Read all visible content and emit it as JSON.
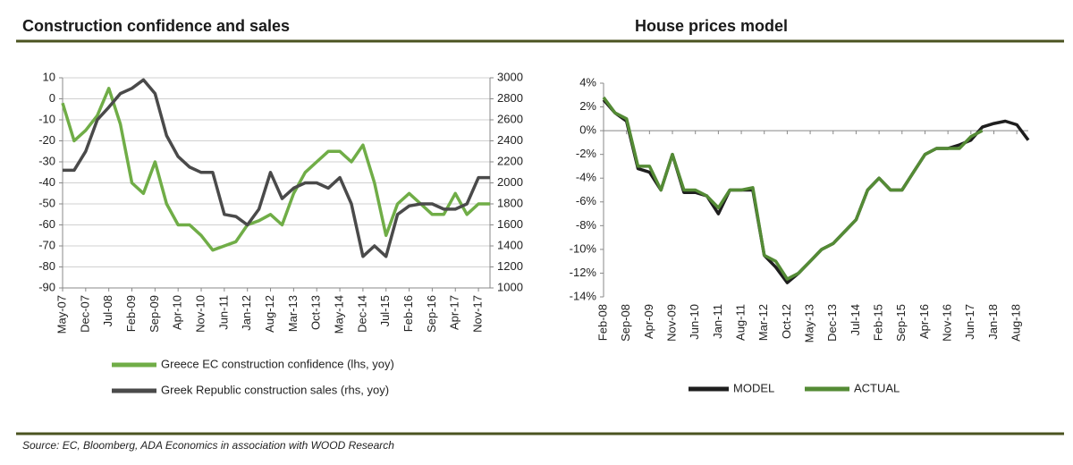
{
  "chart_data": [
    {
      "type": "line",
      "title": "Construction confidence and sales",
      "categories": [
        "May-07",
        null,
        "Dec-07",
        null,
        "Jul-08",
        null,
        "Feb-09",
        null,
        "Sep-09",
        null,
        "Apr-10",
        null,
        "Nov-10",
        null,
        "Jun-11",
        null,
        "Jan-12",
        null,
        "Aug-12",
        null,
        "Mar-13",
        null,
        "Oct-13",
        null,
        "May-14",
        null,
        "Dec-14",
        null,
        "Jul-15",
        null,
        "Feb-16",
        null,
        "Sep-16",
        null,
        "Apr-17",
        null,
        "Nov-17",
        null
      ],
      "series": [
        {
          "name": "Greece EC construction confidence (lhs, yoy)",
          "color": "#70ad47",
          "axis": "y",
          "values": [
            -2,
            -20,
            -15,
            -8,
            5,
            -12,
            -40,
            -45,
            -30,
            -50,
            -60,
            -60,
            -65,
            -72,
            -70,
            -68,
            -60,
            -58,
            -55,
            -60,
            -45,
            -35,
            -30,
            -25,
            -25,
            -30,
            -22,
            -40,
            -65,
            -50,
            -45,
            -50,
            -55,
            -55,
            -45,
            -55,
            -50,
            -50
          ]
        },
        {
          "name": "Greek Republic construction sales (rhs, yoy)",
          "color": "#4a4a4a",
          "axis": "y2",
          "values": [
            2120,
            2120,
            2300,
            2600,
            2720,
            2850,
            2900,
            2980,
            2850,
            2450,
            2250,
            2150,
            2100,
            2100,
            1700,
            1680,
            1600,
            1750,
            2100,
            1850,
            1950,
            2000,
            2000,
            1950,
            2050,
            1800,
            1300,
            1400,
            1300,
            1700,
            1780,
            1800,
            1800,
            1750,
            1750,
            1800,
            2050,
            2050
          ]
        }
      ],
      "ylim": [
        -90,
        10
      ],
      "yticks": [
        -90,
        -80,
        -70,
        -60,
        -50,
        -40,
        -30,
        -20,
        -10,
        0,
        10
      ],
      "y2lim": [
        1000,
        3000
      ],
      "y2ticks": [
        1000,
        1200,
        1400,
        1600,
        1800,
        2000,
        2200,
        2400,
        2600,
        2800,
        3000
      ],
      "grid": true,
      "legend": "bottom"
    },
    {
      "type": "line",
      "title": "House prices model",
      "categories": [
        "Feb-08",
        null,
        "Sep-08",
        null,
        "Apr-09",
        null,
        "Nov-09",
        null,
        "Jun-10",
        null,
        "Jan-11",
        null,
        "Aug-11",
        null,
        "Mar-12",
        null,
        "Oct-12",
        null,
        "May-13",
        null,
        "Dec-13",
        null,
        "Jul-14",
        null,
        "Feb-15",
        null,
        "Sep-15",
        null,
        "Apr-16",
        null,
        "Nov-16",
        null,
        "Jun-17",
        null,
        "Jan-18",
        null,
        "Aug-18",
        null
      ],
      "series": [
        {
          "name": "MODEL",
          "color": "#1e1e1e",
          "axis": "y",
          "values": [
            2.6,
            1.5,
            0.8,
            -3.2,
            -3.5,
            -5,
            -2,
            -5.2,
            -5.2,
            -5.5,
            -7,
            -5,
            -5,
            -5,
            -10.5,
            -11.5,
            -12.8,
            -12,
            -11,
            -10,
            -9.5,
            -8.5,
            -7.5,
            -5,
            -4,
            -5,
            -5,
            -3.5,
            -2,
            -1.5,
            -1.5,
            -1.2,
            -0.8,
            0.3,
            0.6,
            0.8,
            0.5,
            -0.8
          ]
        },
        {
          "name": "ACTUAL",
          "color": "#548b35",
          "axis": "y",
          "values": [
            2.8,
            1.5,
            1.0,
            -3,
            -3,
            -5,
            -2,
            -5,
            -5,
            -5.5,
            -6.5,
            -5,
            -5,
            -4.8,
            -10.5,
            -11,
            -12.5,
            -12,
            -11,
            -10,
            -9.5,
            -8.5,
            -7.5,
            -5,
            -4,
            -5,
            -5,
            -3.5,
            -2,
            -1.5,
            -1.5,
            -1.5,
            -0.5,
            0,
            null,
            null,
            null,
            null
          ]
        }
      ],
      "ylim": [
        -14,
        4
      ],
      "yticks": [
        {
          "value": -14,
          "label": "-14%"
        },
        {
          "value": -12,
          "label": "-12%"
        },
        {
          "value": -10,
          "label": "-10%"
        },
        {
          "value": -8,
          "label": "-8%"
        },
        {
          "value": -6,
          "label": "-6%"
        },
        {
          "value": -4,
          "label": "-4%"
        },
        {
          "value": -2,
          "label": "-2%"
        },
        {
          "value": 0,
          "label": "0%"
        },
        {
          "value": 2,
          "label": "2%"
        },
        {
          "value": 4,
          "label": "4%"
        }
      ],
      "grid": false,
      "legend": "bottom"
    }
  ],
  "source": "Source: EC, Bloomberg, ADA Economics in association with WOOD Research"
}
